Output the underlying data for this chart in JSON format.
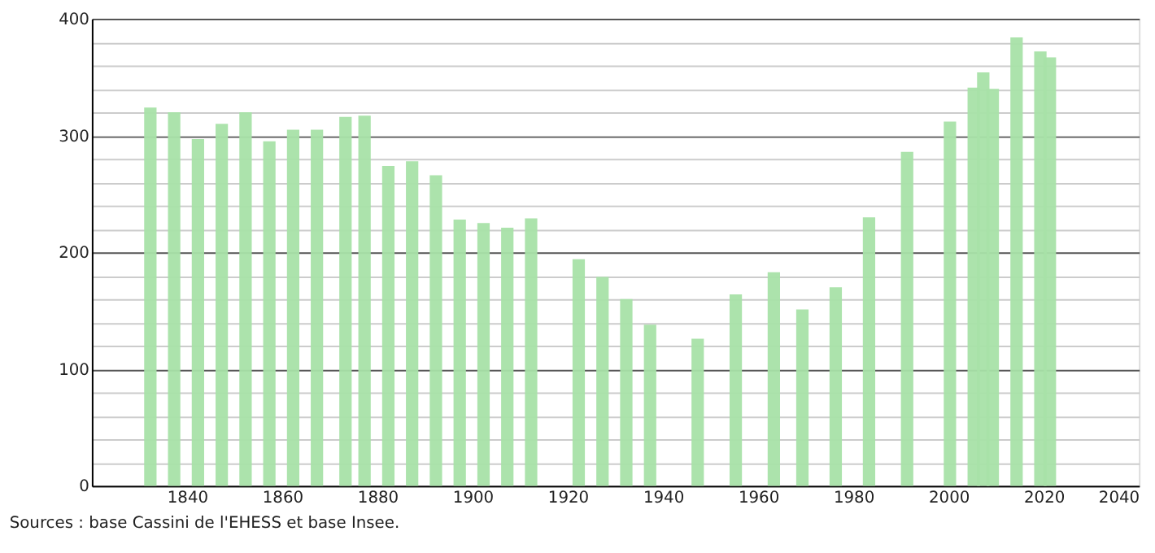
{
  "chart_data": {
    "type": "bar",
    "x": [
      1831,
      1836,
      1841,
      1846,
      1851,
      1856,
      1861,
      1866,
      1872,
      1876,
      1881,
      1886,
      1891,
      1896,
      1901,
      1906,
      1911,
      1921,
      1926,
      1931,
      1936,
      1946,
      1954,
      1962,
      1968,
      1975,
      1982,
      1990,
      1999,
      2004,
      2006,
      2008,
      2013,
      2018,
      2020
    ],
    "values": [
      324,
      320,
      297,
      310,
      320,
      295,
      305,
      305,
      316,
      317,
      274,
      278,
      266,
      228,
      225,
      221,
      229,
      194,
      179,
      160,
      138,
      126,
      164,
      183,
      151,
      170,
      230,
      286,
      312,
      341,
      354,
      340,
      384,
      372,
      367
    ],
    "color": "#a8e2a8",
    "xlim": [
      1820,
      2040
    ],
    "xticks": [
      1840,
      1860,
      1880,
      1900,
      1920,
      1940,
      1960,
      1980,
      2000,
      2020,
      2040
    ],
    "ylim": [
      0,
      400
    ],
    "yticks": [
      0,
      {
        "value": 20,
        "label": null
      },
      {
        "value": 40,
        "label": null
      },
      {
        "value": 60,
        "label": null
      },
      {
        "value": 80,
        "label": null
      },
      100,
      {
        "value": 120,
        "label": null
      },
      {
        "value": 140,
        "label": null
      },
      {
        "value": 160,
        "label": null
      },
      {
        "value": 180,
        "label": null
      },
      200,
      {
        "value": 220,
        "label": null
      },
      {
        "value": 240,
        "label": null
      },
      {
        "value": 260,
        "label": null
      },
      {
        "value": 280,
        "label": null
      },
      300,
      {
        "value": 320,
        "label": null
      },
      {
        "value": 340,
        "label": null
      },
      {
        "value": 360,
        "label": null
      },
      {
        "value": 380,
        "label": null
      },
      400
    ],
    "grid": "y",
    "annotations": [
      "Sources : base Cassini de l'EHESS et base Insee."
    ]
  }
}
